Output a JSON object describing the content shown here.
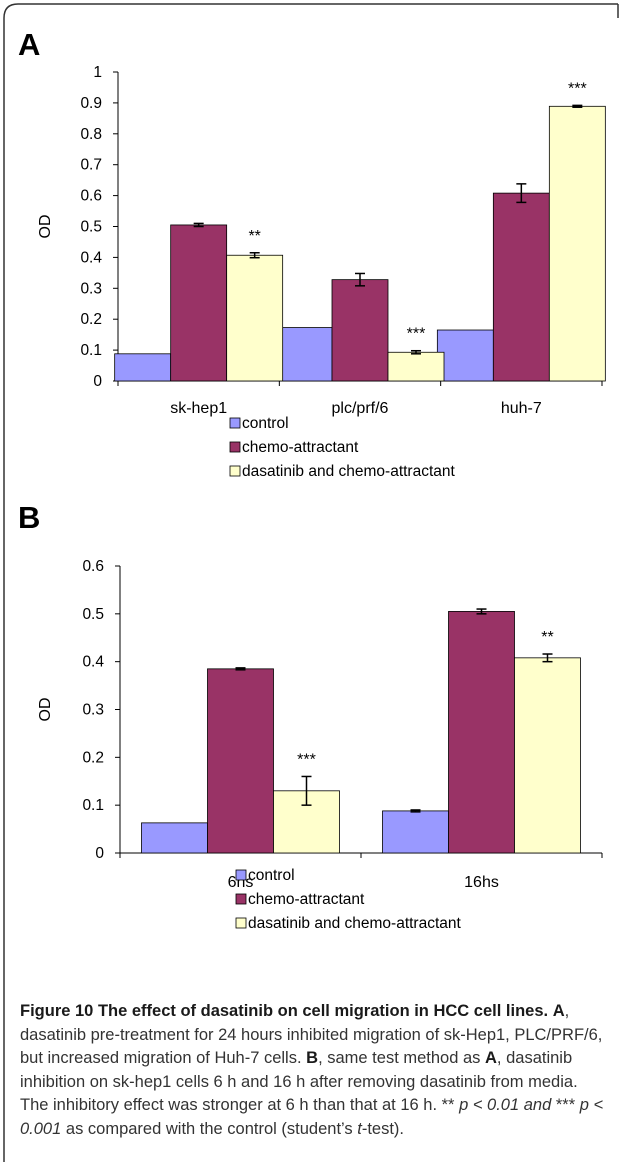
{
  "figure": {
    "caption": {
      "title": "Figure 10 The effect of dasatinib on cell migration in HCC cell lines.",
      "part1_letter": "A",
      "part1_text": ", dasatinib pre-treatment for 24 hours inhibited migration of sk-Hep1, PLC/PRF/6, but increased migration of Huh-7 cells.",
      "part2_letter": "B",
      "part2_text_a": ", same test method as",
      "part2_ref_letter": "A",
      "part2_text_b": ", dasatinib inhibition on sk-hep1 cells 6 h and 16 h after removing dasatinib from media. The inhibitory effect was stronger at 6 h than that at 16 h. **",
      "stat_1": "p < 0.01 and",
      "stat_mid": "***",
      "stat_2": "p < 0.001",
      "part2_text_c": "as compared with the control (student’s",
      "test_italic": "t",
      "part2_text_d": "-test)."
    }
  },
  "chart_data": [
    {
      "panel": "A",
      "type": "bar",
      "categories": [
        "sk-hep1",
        "plc/prf/6",
        "huh-7"
      ],
      "ylabel": "OD",
      "xlabel": "",
      "ylim": [
        0,
        1
      ],
      "yticks": [
        "0",
        "0.1",
        "0.2",
        "0.3",
        "0.4",
        "0.5",
        "0.6",
        "0.7",
        "0.8",
        "0.9",
        "1"
      ],
      "grid": false,
      "legend_position": "bottom",
      "series": [
        {
          "name": "control",
          "color": "#9999ff",
          "values": [
            0.088,
            0.173,
            0.165
          ],
          "errors": [
            0,
            0,
            0
          ],
          "sig": [
            "",
            "",
            ""
          ]
        },
        {
          "name": "chemo-attractant",
          "color": "#993366",
          "values": [
            0.505,
            0.328,
            0.608
          ],
          "errors": [
            0.005,
            0.02,
            0.03
          ],
          "sig": [
            "",
            "",
            ""
          ]
        },
        {
          "name": "dasatinib and chemo-attractant",
          "color": "#ffffcc",
          "values": [
            0.407,
            0.093,
            0.889
          ],
          "errors": [
            0.008,
            0.005,
            0.003
          ],
          "sig": [
            "**",
            "***",
            "***"
          ]
        }
      ]
    },
    {
      "panel": "B",
      "type": "bar",
      "categories": [
        "6hs",
        "16hs"
      ],
      "ylabel": "OD",
      "xlabel": "",
      "ylim": [
        0,
        0.6
      ],
      "yticks": [
        "0",
        "0.1",
        "0.2",
        "0.3",
        "0.4",
        "0.5",
        "0.6"
      ],
      "grid": false,
      "legend_position": "bottom",
      "series": [
        {
          "name": "control",
          "color": "#9999ff",
          "values": [
            0.063,
            0.088
          ],
          "errors": [
            0,
            0.002
          ],
          "sig": [
            "",
            ""
          ]
        },
        {
          "name": "chemo-attractant",
          "color": "#993366",
          "values": [
            0.385,
            0.505
          ],
          "errors": [
            0.002,
            0.005
          ],
          "sig": [
            "",
            ""
          ]
        },
        {
          "name": "dasatinib and chemo-attractant",
          "color": "#ffffcc",
          "values": [
            0.13,
            0.408
          ],
          "errors": [
            0.03,
            0.008
          ],
          "sig": [
            "***",
            "**"
          ]
        }
      ]
    }
  ]
}
